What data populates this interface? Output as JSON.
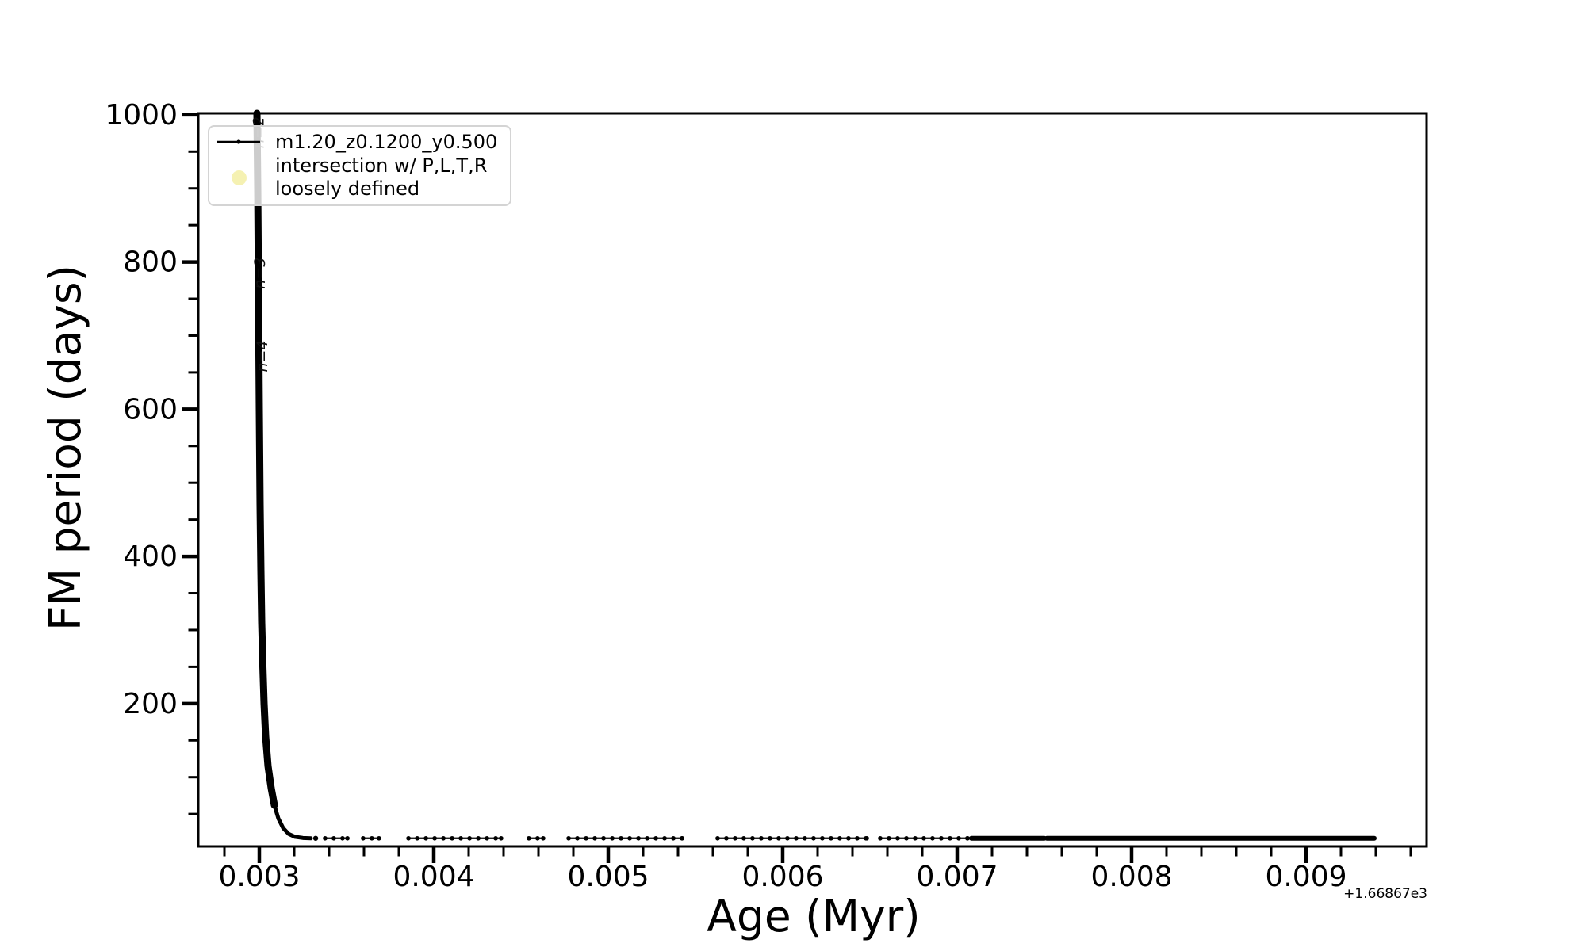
{
  "figure": {
    "background": "#ffffff"
  },
  "chart_data": {
    "type": "line",
    "title": "",
    "xlabel": "Age (Myr)",
    "ylabel": "FM period (days)",
    "x_offset_text": "+1.66867e3",
    "xlim": [
      0.00265,
      0.009691
    ],
    "ylim": [
      6,
      1002
    ],
    "grid": false,
    "axis_color": "#000000",
    "xticks": {
      "major": [
        0.003,
        0.004,
        0.005,
        0.006,
        0.007,
        0.008,
        0.009
      ],
      "labels": [
        "0.003",
        "0.004",
        "0.005",
        "0.006",
        "0.007",
        "0.008",
        "0.009"
      ],
      "minor_step": 0.0002
    },
    "yticks": {
      "major": [
        200,
        400,
        600,
        800,
        1000
      ],
      "labels": [
        "200",
        "400",
        "600",
        "800",
        "1000"
      ],
      "minor_step": 50
    },
    "legend": {
      "position": "upper left",
      "entries": [
        {
          "label": "m1.20_z0.1200_y0.500",
          "marker": "line-with-point",
          "color": "#000000"
        },
        {
          "label_line1": "intersection w/ P,L,T,R",
          "label_line2": "loosely defined",
          "marker": "circle",
          "color": "#f5f1b2"
        }
      ]
    },
    "series": [
      {
        "name": "m1.20_z0.1200_y0.500",
        "color": "#000000",
        "curve_points": [
          [
            0.0029864,
            1002
          ],
          [
            0.0029909,
            900
          ],
          [
            0.0029955,
            750
          ],
          [
            0.003,
            600
          ],
          [
            0.0030045,
            470
          ],
          [
            0.0030091,
            380
          ],
          [
            0.0030136,
            310
          ],
          [
            0.0030205,
            250
          ],
          [
            0.0030273,
            200
          ],
          [
            0.0030364,
            155
          ],
          [
            0.00305,
            115
          ],
          [
            0.0030682,
            85
          ],
          [
            0.0030864,
            62
          ],
          [
            0.0031091,
            44
          ],
          [
            0.0031364,
            31
          ],
          [
            0.0031682,
            23
          ],
          [
            0.0032045,
            19
          ],
          [
            0.00325,
            17.5
          ],
          [
            0.0032955,
            17
          ]
        ],
        "flat_period": 17,
        "marker_step": 5e-05,
        "isolated_points": [
          [
            0.003323,
            17
          ]
        ],
        "flat_segments": [
          {
            "start": 0.003377,
            "end": 0.003505,
            "dense": false
          },
          {
            "start": 0.003595,
            "end": 0.003686,
            "dense": false
          },
          {
            "start": 0.003855,
            "end": 0.004386,
            "dense": false
          },
          {
            "start": 0.004545,
            "end": 0.004627,
            "dense": false
          },
          {
            "start": 0.004773,
            "end": 0.005423,
            "dense": false
          },
          {
            "start": 0.005627,
            "end": 0.006482,
            "dense": false
          },
          {
            "start": 0.006559,
            "end": 0.007059,
            "dense": false
          },
          {
            "start": 0.007082,
            "end": 0.0075,
            "dense": true
          },
          {
            "start": 0.007514,
            "end": 0.009391,
            "dense": true
          }
        ]
      }
    ],
    "annotations": [
      {
        "text": "n=2",
        "x": 0.003025,
        "y": 976,
        "rotation": 90
      },
      {
        "text": "n=3",
        "x": 0.003032,
        "y": 785,
        "rotation": 90
      },
      {
        "text": "n=4",
        "x": 0.003045,
        "y": 672,
        "rotation": 90
      }
    ]
  }
}
